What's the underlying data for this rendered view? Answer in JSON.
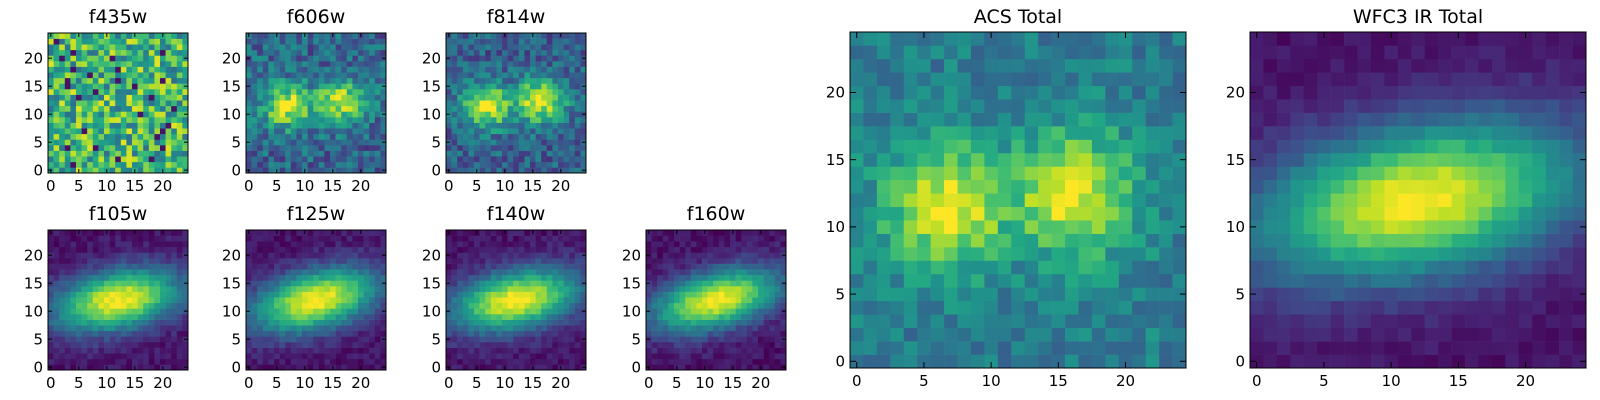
{
  "figure": {
    "background": "#ffffff",
    "colormap": "viridis"
  },
  "chart_data": [
    {
      "type": "heatmap",
      "title": "f435w",
      "xlim": [
        -0.5,
        24.5
      ],
      "ylim": [
        -0.5,
        24.5
      ],
      "xticks": [
        0,
        5,
        10,
        15,
        20
      ],
      "yticks": [
        0,
        5,
        10,
        15,
        20
      ],
      "model": {
        "kind": "noise",
        "base": 0.66,
        "amp": 0.0,
        "cx": 12,
        "cy": 12,
        "sx": 8,
        "sy": 6,
        "angle": 0,
        "noise": 0.3,
        "seed": 7
      }
    },
    {
      "type": "heatmap",
      "title": "f606w",
      "xlim": [
        -0.5,
        24.5
      ],
      "ylim": [
        -0.5,
        24.5
      ],
      "xticks": [
        0,
        5,
        10,
        15,
        20
      ],
      "yticks": [
        0,
        5,
        10,
        15,
        20
      ],
      "model": {
        "kind": "double",
        "base": 0.32,
        "amp": 0.6,
        "cx": 12,
        "cy": 12,
        "sx": 8,
        "sy": 2.8,
        "angle": 0.1,
        "noise": 0.18,
        "seed": 11
      }
    },
    {
      "type": "heatmap",
      "title": "f814w",
      "xlim": [
        -0.5,
        24.5
      ],
      "ylim": [
        -0.5,
        24.5
      ],
      "xticks": [
        0,
        5,
        10,
        15,
        20
      ],
      "yticks": [
        0,
        5,
        10,
        15,
        20
      ],
      "model": {
        "kind": "double",
        "base": 0.3,
        "amp": 0.65,
        "cx": 12,
        "cy": 12,
        "sx": 8,
        "sy": 2.8,
        "angle": 0.1,
        "noise": 0.16,
        "seed": 23
      }
    },
    {
      "type": "heatmap",
      "title": "f105w",
      "xlim": [
        -0.5,
        24.5
      ],
      "ylim": [
        -0.5,
        24.5
      ],
      "xticks": [
        0,
        5,
        10,
        15,
        20
      ],
      "yticks": [
        0,
        5,
        10,
        15,
        20
      ],
      "model": {
        "kind": "gauss",
        "base": 0.05,
        "amp": 0.95,
        "cx": 12,
        "cy": 12,
        "sx": 8,
        "sy": 3.6,
        "angle": 0.2,
        "noise": 0.06,
        "seed": 31
      }
    },
    {
      "type": "heatmap",
      "title": "f125w",
      "xlim": [
        -0.5,
        24.5
      ],
      "ylim": [
        -0.5,
        24.5
      ],
      "xticks": [
        0,
        5,
        10,
        15,
        20
      ],
      "yticks": [
        0,
        5,
        10,
        15,
        20
      ],
      "model": {
        "kind": "gauss",
        "base": 0.05,
        "amp": 0.95,
        "cx": 12,
        "cy": 12,
        "sx": 8,
        "sy": 3.6,
        "angle": 0.25,
        "noise": 0.06,
        "seed": 37
      }
    },
    {
      "type": "heatmap",
      "title": "f140w",
      "xlim": [
        -0.5,
        24.5
      ],
      "ylim": [
        -0.5,
        24.5
      ],
      "xticks": [
        0,
        5,
        10,
        15,
        20
      ],
      "yticks": [
        0,
        5,
        10,
        15,
        20
      ],
      "model": {
        "kind": "gauss",
        "base": 0.05,
        "amp": 0.95,
        "cx": 12,
        "cy": 12,
        "sx": 8,
        "sy": 3.6,
        "angle": 0.2,
        "noise": 0.06,
        "seed": 41
      }
    },
    {
      "type": "heatmap",
      "title": "f160w",
      "xlim": [
        -0.5,
        24.5
      ],
      "ylim": [
        -0.5,
        24.5
      ],
      "xticks": [
        0,
        5,
        10,
        15,
        20
      ],
      "yticks": [
        0,
        5,
        10,
        15,
        20
      ],
      "model": {
        "kind": "gauss",
        "base": 0.05,
        "amp": 0.95,
        "cx": 12,
        "cy": 12,
        "sx": 8,
        "sy": 3.4,
        "angle": 0.25,
        "noise": 0.06,
        "seed": 43
      }
    },
    {
      "type": "heatmap",
      "title": "ACS Total",
      "xlim": [
        -0.5,
        24.5
      ],
      "ylim": [
        -0.5,
        24.5
      ],
      "xticks": [
        0,
        5,
        10,
        15,
        20
      ],
      "yticks": [
        0,
        5,
        10,
        15,
        20
      ],
      "model": {
        "kind": "double",
        "base": 0.42,
        "amp": 0.55,
        "cx": 12,
        "cy": 12,
        "sx": 8.5,
        "sy": 3.2,
        "angle": 0.1,
        "noise": 0.12,
        "seed": 53
      }
    },
    {
      "type": "heatmap",
      "title": "WFC3 IR Total",
      "xlim": [
        -0.5,
        24.5
      ],
      "ylim": [
        -0.5,
        24.5
      ],
      "xticks": [
        0,
        5,
        10,
        15,
        20
      ],
      "yticks": [
        0,
        5,
        10,
        15,
        20
      ],
      "model": {
        "kind": "gauss",
        "base": 0.05,
        "amp": 0.95,
        "cx": 12,
        "cy": 12,
        "sx": 8.5,
        "sy": 3.8,
        "angle": 0.2,
        "noise": 0.04,
        "seed": 59
      }
    }
  ]
}
